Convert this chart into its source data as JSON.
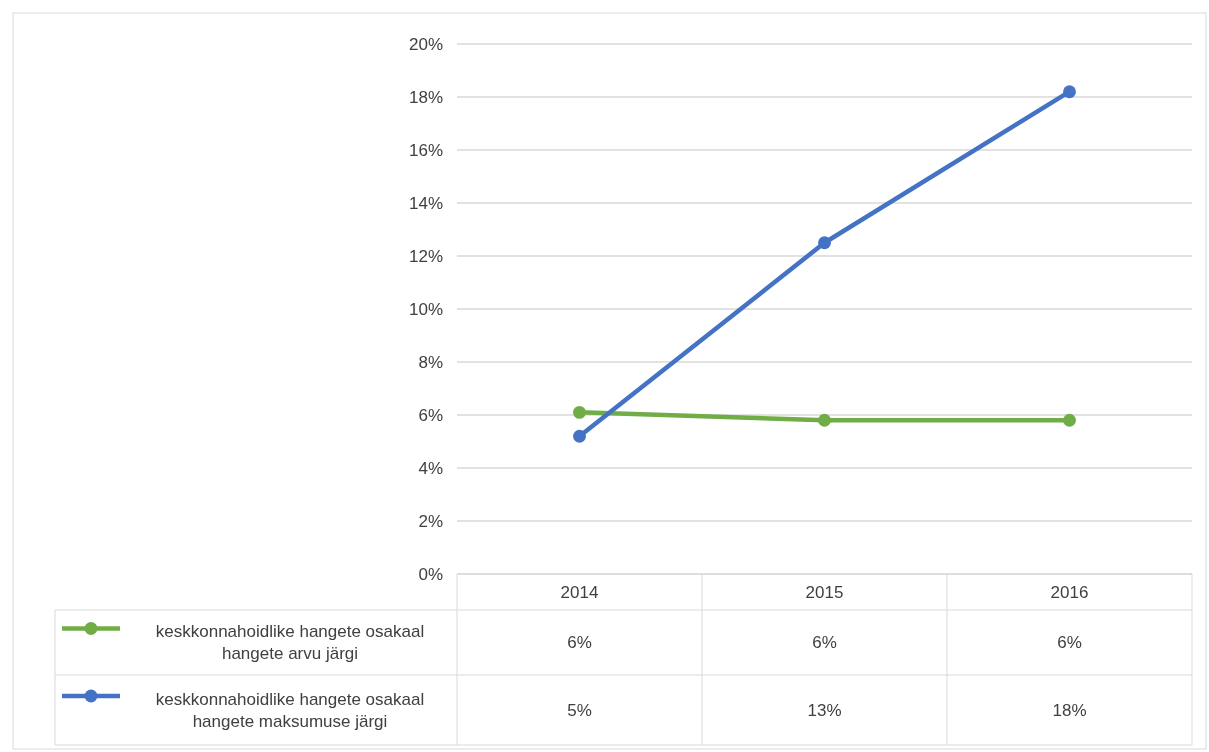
{
  "chart_data": {
    "type": "line",
    "categories": [
      "2014",
      "2015",
      "2016"
    ],
    "series": [
      {
        "name": "keskkonnahoidlike hangete osakaal hangete arvu järgi",
        "color": "#70ad47",
        "values": [
          6.1,
          5.8,
          5.8
        ],
        "value_labels": [
          "6%",
          "6%",
          "6%"
        ]
      },
      {
        "name": "keskkonnahoidlike hangete osakaal hangete maksumuse järgi",
        "color": "#4472c4",
        "values": [
          5.2,
          12.5,
          18.2
        ],
        "value_labels": [
          "5%",
          "13%",
          "18%"
        ]
      }
    ],
    "ylim": [
      0,
      20
    ],
    "yticks": [
      {
        "value": 0,
        "label": "0%"
      },
      {
        "value": 2,
        "label": "2%"
      },
      {
        "value": 4,
        "label": "4%"
      },
      {
        "value": 6,
        "label": "6%"
      },
      {
        "value": 8,
        "label": "8%"
      },
      {
        "value": 10,
        "label": "10%"
      },
      {
        "value": 12,
        "label": "12%"
      },
      {
        "value": 14,
        "label": "14%"
      },
      {
        "value": 16,
        "label": "16%"
      },
      {
        "value": 18,
        "label": "18%"
      },
      {
        "value": 20,
        "label": "20%"
      }
    ],
    "grid": "y",
    "marker": "circle",
    "line_style": "solid",
    "legend": "bottom left"
  }
}
